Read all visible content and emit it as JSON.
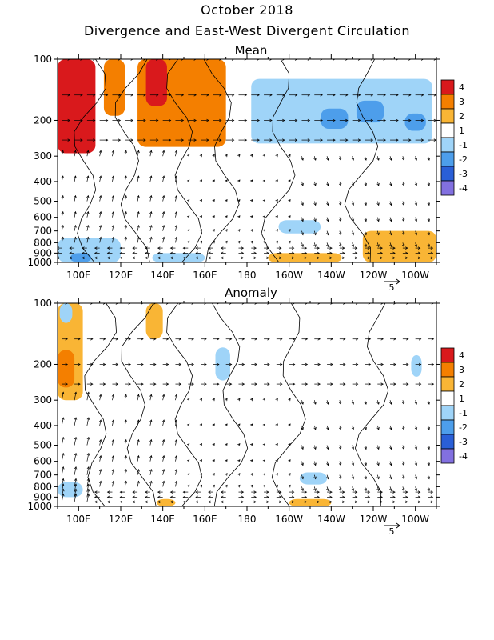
{
  "figure": {
    "title": "October 2018",
    "subtitle": "Divergence and East-West Divergent Circulation"
  },
  "chart_data": [
    {
      "type": "heatmap",
      "title": "Mean",
      "x_ticks": [
        "100E",
        "120E",
        "140E",
        "160E",
        "180",
        "160W",
        "140W",
        "120W",
        "100W"
      ],
      "x_tick_values": [
        100,
        120,
        140,
        160,
        180,
        200,
        220,
        240,
        260
      ],
      "xlim": [
        90,
        270
      ],
      "y_ticks": [
        "100",
        "200",
        "300",
        "400",
        "500",
        "600",
        "700",
        "800",
        "900",
        "1000"
      ],
      "y_tick_values": [
        100,
        200,
        300,
        400,
        500,
        600,
        700,
        800,
        900,
        1000
      ],
      "ylim": [
        1000,
        100
      ],
      "y_scale": "log",
      "legend": {
        "position": "right",
        "levels": [
          "4",
          "3",
          "2",
          "1",
          "-1",
          "-2",
          "-3",
          "-4"
        ]
      },
      "arrow_scale_label": "5",
      "regions": [
        {
          "lon": [
            90,
            108
          ],
          "p": [
            100,
            290
          ],
          "value": 3.5
        },
        {
          "lon": [
            112,
            122
          ],
          "p": [
            100,
            190
          ],
          "value": 2.5
        },
        {
          "lon": [
            128,
            170
          ],
          "p": [
            100,
            270
          ],
          "value": 2.2
        },
        {
          "lon": [
            132,
            142
          ],
          "p": [
            100,
            170
          ],
          "value": 3.3
        },
        {
          "lon": [
            182,
            268
          ],
          "p": [
            125,
            260
          ],
          "value": -1.4
        },
        {
          "lon": [
            215,
            228
          ],
          "p": [
            175,
            220
          ],
          "value": -2.3
        },
        {
          "lon": [
            232,
            245
          ],
          "p": [
            160,
            205
          ],
          "value": -2.2
        },
        {
          "lon": [
            255,
            265
          ],
          "p": [
            185,
            225
          ],
          "value": -2.2
        },
        {
          "lon": [
            90,
            120
          ],
          "p": [
            760,
            1000
          ],
          "value": -1.6
        },
        {
          "lon": [
            96,
            106
          ],
          "p": [
            900,
            1000
          ],
          "value": -2.4
        },
        {
          "lon": [
            190,
            225
          ],
          "p": [
            900,
            1000
          ],
          "value": 1.8
        },
        {
          "lon": [
            235,
            270
          ],
          "p": [
            700,
            1000
          ],
          "value": 1.6
        },
        {
          "lon": [
            195,
            215
          ],
          "p": [
            620,
            720
          ],
          "value": -1.3
        },
        {
          "lon": [
            135,
            160
          ],
          "p": [
            900,
            1000
          ],
          "value": -1.3
        }
      ]
    },
    {
      "type": "heatmap",
      "title": "Anomaly",
      "x_ticks": [
        "100E",
        "120E",
        "140E",
        "160E",
        "180",
        "160W",
        "140W",
        "120W",
        "100W"
      ],
      "x_tick_values": [
        100,
        120,
        140,
        160,
        180,
        200,
        220,
        240,
        260
      ],
      "xlim": [
        90,
        270
      ],
      "y_ticks": [
        "100",
        "200",
        "300",
        "400",
        "500",
        "600",
        "700",
        "800",
        "900",
        "1000"
      ],
      "y_tick_values": [
        100,
        200,
        300,
        400,
        500,
        600,
        700,
        800,
        900,
        1000
      ],
      "ylim": [
        1000,
        100
      ],
      "y_scale": "log",
      "legend": {
        "position": "right",
        "levels": [
          "4",
          "3",
          "2",
          "1",
          "-1",
          "-2",
          "-3",
          "-4"
        ]
      },
      "arrow_scale_label": "5",
      "regions": [
        {
          "lon": [
            90,
            102
          ],
          "p": [
            100,
            300
          ],
          "value": 1.9
        },
        {
          "lon": [
            90,
            98
          ],
          "p": [
            170,
            260
          ],
          "value": 2.7
        },
        {
          "lon": [
            91,
            97
          ],
          "p": [
            100,
            125
          ],
          "value": -1.4
        },
        {
          "lon": [
            132,
            140
          ],
          "p": [
            100,
            150
          ],
          "value": 1.5
        },
        {
          "lon": [
            165,
            172
          ],
          "p": [
            165,
            240
          ],
          "value": -1.4
        },
        {
          "lon": [
            258,
            263
          ],
          "p": [
            180,
            230
          ],
          "value": -1.3
        },
        {
          "lon": [
            205,
            218
          ],
          "p": [
            680,
            780
          ],
          "value": -1.4
        },
        {
          "lon": [
            90,
            102
          ],
          "p": [
            760,
            900
          ],
          "value": -1.3
        },
        {
          "lon": [
            200,
            220
          ],
          "p": [
            920,
            1000
          ],
          "value": 1.5
        },
        {
          "lon": [
            137,
            146
          ],
          "p": [
            920,
            1000
          ],
          "value": 1.4
        }
      ]
    }
  ],
  "legend_colors": [
    "#d9191c",
    "#f47f00",
    "#f9b535",
    "#ffffff",
    "#9fd4f8",
    "#4d9eeb",
    "#2a5fd7",
    "#8270e0"
  ]
}
